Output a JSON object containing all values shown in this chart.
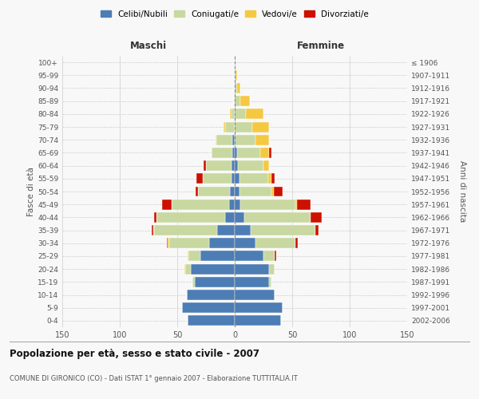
{
  "age_groups": [
    "0-4",
    "5-9",
    "10-14",
    "15-19",
    "20-24",
    "25-29",
    "30-34",
    "35-39",
    "40-44",
    "45-49",
    "50-54",
    "55-59",
    "60-64",
    "65-69",
    "70-74",
    "75-79",
    "80-84",
    "85-89",
    "90-94",
    "95-99",
    "100+"
  ],
  "birth_years": [
    "2002-2006",
    "1997-2001",
    "1992-1996",
    "1987-1991",
    "1982-1986",
    "1977-1981",
    "1972-1976",
    "1967-1971",
    "1962-1966",
    "1957-1961",
    "1952-1956",
    "1947-1951",
    "1942-1946",
    "1937-1941",
    "1932-1936",
    "1927-1931",
    "1922-1926",
    "1917-1921",
    "1912-1916",
    "1907-1911",
    "≤ 1906"
  ],
  "male_celibi": [
    41,
    46,
    42,
    35,
    38,
    30,
    22,
    15,
    8,
    5,
    4,
    3,
    3,
    2,
    2,
    0,
    0,
    0,
    0,
    0,
    0
  ],
  "male_coniugati": [
    0,
    0,
    0,
    2,
    5,
    10,
    35,
    55,
    60,
    50,
    28,
    25,
    22,
    18,
    14,
    8,
    3,
    1,
    0,
    0,
    0
  ],
  "male_vedovi": [
    0,
    0,
    0,
    0,
    1,
    1,
    1,
    1,
    0,
    0,
    0,
    0,
    0,
    0,
    1,
    2,
    1,
    0,
    0,
    0,
    0
  ],
  "male_divorziati": [
    0,
    0,
    0,
    0,
    0,
    0,
    1,
    1,
    2,
    8,
    2,
    5,
    2,
    0,
    0,
    0,
    0,
    0,
    0,
    0,
    0
  ],
  "female_celibi": [
    40,
    42,
    35,
    30,
    30,
    25,
    18,
    14,
    8,
    5,
    4,
    4,
    3,
    2,
    0,
    0,
    0,
    0,
    0,
    0,
    0
  ],
  "female_coniugati": [
    0,
    0,
    0,
    2,
    5,
    10,
    35,
    56,
    58,
    48,
    28,
    25,
    22,
    20,
    18,
    15,
    10,
    5,
    2,
    1,
    0
  ],
  "female_vedovi": [
    0,
    0,
    0,
    0,
    0,
    0,
    0,
    0,
    0,
    1,
    2,
    3,
    5,
    8,
    12,
    15,
    15,
    8,
    3,
    1,
    0
  ],
  "female_divorziati": [
    0,
    0,
    0,
    0,
    0,
    1,
    2,
    3,
    10,
    12,
    8,
    3,
    0,
    2,
    0,
    0,
    0,
    0,
    0,
    0,
    0
  ],
  "colors": {
    "celibi": "#4d7db5",
    "coniugati": "#c8d8a0",
    "vedovi": "#f5c842",
    "divorziati": "#cc1100"
  },
  "title": "Popolazione per età, sesso e stato civile - 2007",
  "subtitle": "COMUNE DI GIRONICO (CO) - Dati ISTAT 1° gennaio 2007 - Elaborazione TUTTITALIA.IT",
  "xlabel_left": "Maschi",
  "xlabel_right": "Femmine",
  "ylabel_left": "Fasce di età",
  "ylabel_right": "Anni di nascita",
  "xlim": 150,
  "bg_color": "#f8f8f8",
  "grid_color": "#cccccc"
}
